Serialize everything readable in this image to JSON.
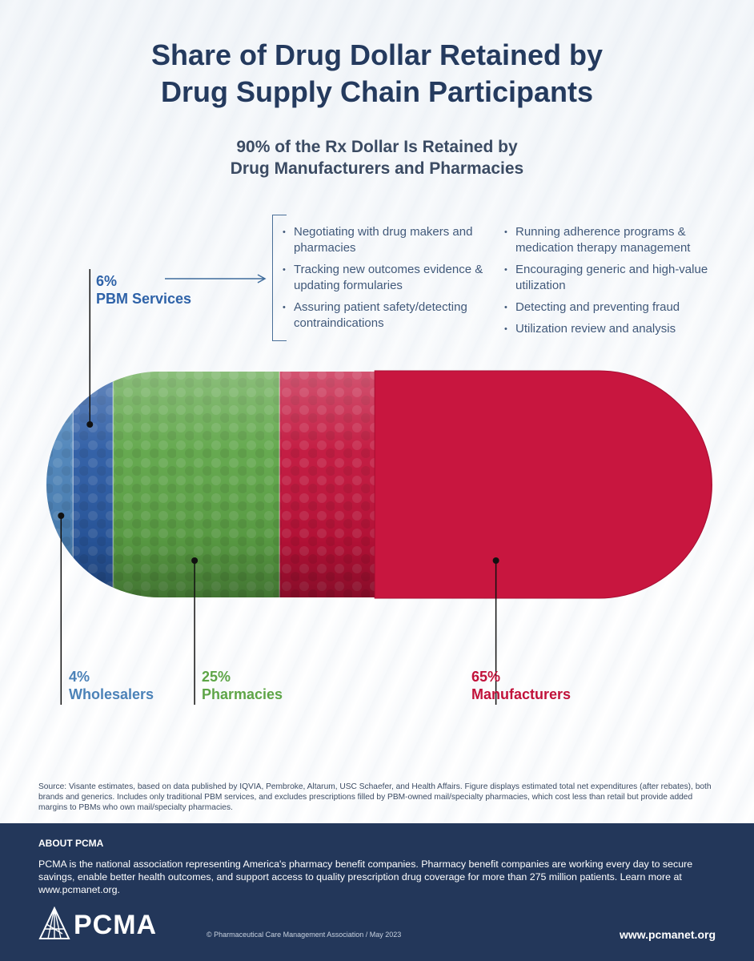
{
  "header": {
    "title": "Share of Drug Dollar Retained by\nDrug Supply Chain Participants",
    "subtitle": "90% of the Rx Dollar Is Retained by\nDrug Manufacturers and Pharmacies"
  },
  "chart_data": {
    "type": "bar",
    "orientation": "horizontal-stacked",
    "categories": [
      "Wholesalers",
      "PBM Services",
      "Pharmacies",
      "Manufacturers"
    ],
    "values": [
      4,
      6,
      25,
      65
    ],
    "value_labels": [
      "4%",
      "6%",
      "25%",
      "65%"
    ],
    "unit": "%",
    "colors": [
      "#4b82b8",
      "#2a5aa3",
      "#5ea547",
      "#c1123a"
    ],
    "xlim": [
      0,
      100
    ],
    "title": "Share of Drug Dollar Retained by Drug Supply Chain Participants",
    "grid": false,
    "legend": "none"
  },
  "pbm_services": {
    "left_items": [
      "Negotiating with drug makers and pharmacies",
      "Tracking new outcomes evidence & updating formularies",
      "Assuring patient safety/detecting contraindications"
    ],
    "right_items": [
      "Running adherence programs & medication therapy management",
      "Encouraging generic and high-value utilization",
      "Detecting and preventing fraud",
      "Utilization review and analysis"
    ]
  },
  "source": "Source: Visante estimates, based on data published by IQVIA, Pembroke, Altarum, USC Schaefer, and Health Affairs. Figure displays estimated total net expenditures (after rebates), both brands and generics. Includes only traditional PBM services, and excludes prescriptions filled by PBM-owned mail/specialty pharmacies, which cost less than retail but provide added margins to PBMs who own mail/specialty pharmacies.",
  "footer": {
    "about_title": "ABOUT PCMA",
    "about_text": "PCMA is the national association representing America's pharmacy benefit companies. Pharmacy benefit companies are working every day to secure savings, enable better health outcomes, and support access to quality prescription drug coverage for more than 275 million patients. Learn more at www.pcmanet.org.",
    "logo_text": "PCMA",
    "copyright": "© Pharmaceutical Care Management Association  /  May 2023",
    "website": "www.pcmanet.org"
  }
}
